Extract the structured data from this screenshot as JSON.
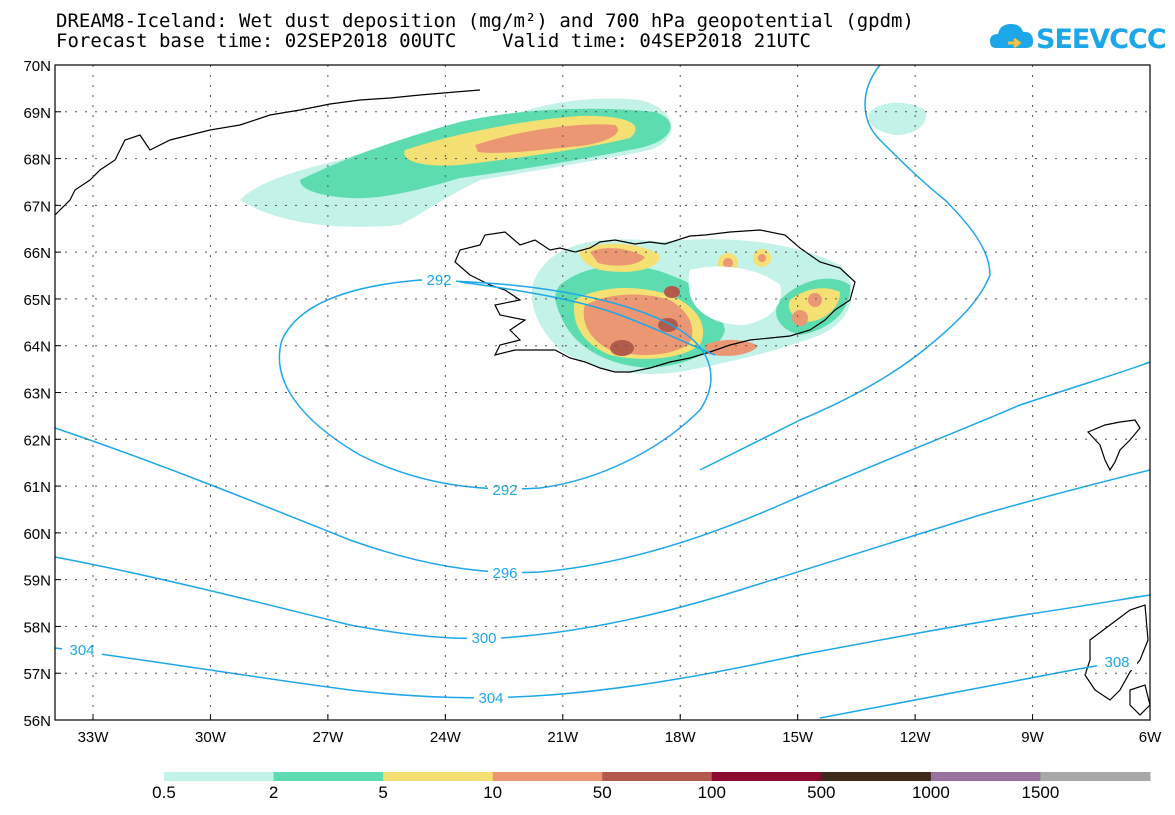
{
  "title_line1": "DREAM8-Iceland: Wet dust deposition (mg/m²) and 700 hPa geopotential (gpdm)",
  "title_line2": "Forecast base time: 02SEP2018 00UTC    Valid time: 04SEP2018 21UTC",
  "logo_text": "SEEVCCC",
  "lat_labels": [
    "70N",
    "69N",
    "68N",
    "67N",
    "66N",
    "65N",
    "64N",
    "63N",
    "62N",
    "61N",
    "60N",
    "59N",
    "58N",
    "57N",
    "56N"
  ],
  "lon_labels": [
    "33W",
    "30W",
    "27W",
    "24W",
    "21W",
    "18W",
    "15W",
    "12W",
    "9W",
    "6W"
  ],
  "contour_labels": [
    "292",
    "292",
    "296",
    "300",
    "304",
    "304",
    "308"
  ],
  "colorbar": {
    "colors": [
      "#c3f2e8",
      "#5ddcb0",
      "#f5e074",
      "#ec9774",
      "#b25a4c",
      "#8a0a30",
      "#3e2a1a",
      "#9a72a0",
      "#a8a8a8"
    ],
    "labels": [
      "0.5",
      "2",
      "5",
      "10",
      "50",
      "100",
      "500",
      "1000",
      "1500"
    ]
  },
  "colors": {
    "contour": "#1ea7e8",
    "coast": "#000000"
  }
}
